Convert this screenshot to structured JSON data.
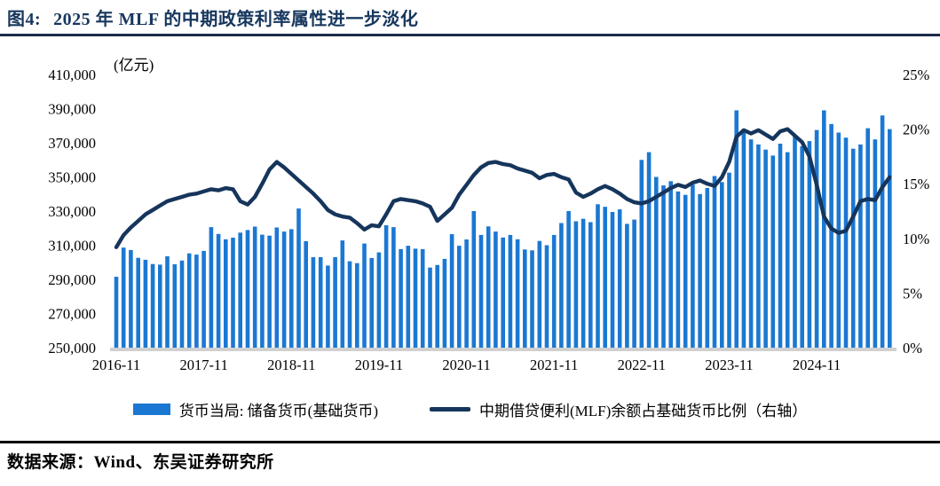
{
  "header": {
    "figure_label": "图4:",
    "title": "2025 年 MLF 的中期政策利率属性进一步淡化"
  },
  "footer": {
    "source": "数据来源：Wind、东吴证券研究所"
  },
  "colors": {
    "bar": "#1B78D2",
    "line": "#16355C",
    "title": "#17375E",
    "baseline": "#D0D0D0",
    "rule_top": "#1B2B4A",
    "rule_bottom": "#000000"
  },
  "chart_data": {
    "type": "bar",
    "subtype": "bar+line combo, dual axis",
    "title": "",
    "unit_label": "(亿元)",
    "legend_position": "bottom",
    "grid": false,
    "x_tick_every": 12,
    "x": [
      "2016-11",
      "2016-12",
      "2017-01",
      "2017-02",
      "2017-03",
      "2017-04",
      "2017-05",
      "2017-06",
      "2017-07",
      "2017-08",
      "2017-09",
      "2017-10",
      "2017-11",
      "2017-12",
      "2018-01",
      "2018-02",
      "2018-03",
      "2018-04",
      "2018-05",
      "2018-06",
      "2018-07",
      "2018-08",
      "2018-09",
      "2018-10",
      "2018-11",
      "2018-12",
      "2019-01",
      "2019-02",
      "2019-03",
      "2019-04",
      "2019-05",
      "2019-06",
      "2019-07",
      "2019-08",
      "2019-09",
      "2019-10",
      "2019-11",
      "2019-12",
      "2020-01",
      "2020-02",
      "2020-03",
      "2020-04",
      "2020-05",
      "2020-06",
      "2020-07",
      "2020-08",
      "2020-09",
      "2020-10",
      "2020-11",
      "2020-12",
      "2021-01",
      "2021-02",
      "2021-03",
      "2021-04",
      "2021-05",
      "2021-06",
      "2021-07",
      "2021-08",
      "2021-09",
      "2021-10",
      "2021-11",
      "2021-12",
      "2022-01",
      "2022-02",
      "2022-03",
      "2022-04",
      "2022-05",
      "2022-06",
      "2022-07",
      "2022-08",
      "2022-09",
      "2022-10",
      "2022-11",
      "2022-12",
      "2023-01",
      "2023-02",
      "2023-03",
      "2023-04",
      "2023-05",
      "2023-06",
      "2023-07",
      "2023-08",
      "2023-09",
      "2023-10",
      "2023-11",
      "2023-12",
      "2024-01",
      "2024-02",
      "2024-03",
      "2024-04",
      "2024-05",
      "2024-06",
      "2024-07",
      "2024-08",
      "2024-09",
      "2024-10",
      "2024-11",
      "2024-12",
      "2025-01",
      "2025-02",
      "2025-03",
      "2025-04",
      "2025-05",
      "2025-06",
      "2025-07",
      "2025-08",
      "2025-09"
    ],
    "left_axis": {
      "min": 250000,
      "max": 410000,
      "step": 20000,
      "tick_labels": [
        "250,000",
        "270,000",
        "290,000",
        "310,000",
        "330,000",
        "350,000",
        "370,000",
        "390,000",
        "410,000"
      ]
    },
    "right_axis": {
      "min": 0,
      "max": 25,
      "step": 5,
      "tick_labels": [
        "0%",
        "5%",
        "10%",
        "15%",
        "20%",
        "25%"
      ]
    },
    "series": [
      {
        "name": "货币当局: 储备货币(基础货币)",
        "type": "bar",
        "axis": "left",
        "color": "#1B78D2",
        "values": [
          291500,
          308600,
          307200,
          302600,
          301500,
          299000,
          298600,
          303500,
          298900,
          301000,
          305200,
          304500,
          306700,
          320600,
          316600,
          313500,
          314400,
          317400,
          318900,
          320900,
          316200,
          315600,
          320400,
          318000,
          319400,
          331500,
          312400,
          303000,
          303000,
          298100,
          303000,
          312800,
          300600,
          299500,
          311000,
          302500,
          305800,
          321700,
          320600,
          307700,
          309700,
          308000,
          307700,
          296900,
          298400,
          302000,
          316500,
          309700,
          313400,
          330000,
          316000,
          321000,
          318000,
          314500,
          316000,
          313500,
          307500,
          307000,
          312500,
          310000,
          316000,
          323000,
          330000,
          324000,
          325500,
          323500,
          334000,
          332500,
          329500,
          331000,
          322500,
          325000,
          360000,
          364500,
          350000,
          345000,
          347500,
          341500,
          339500,
          345500,
          340000,
          343500,
          350500,
          347000,
          352500,
          389000,
          377000,
          372000,
          369000,
          366000,
          362500,
          369500,
          364500,
          374500,
          368000,
          371000,
          377500,
          389000,
          381000,
          376000,
          373000,
          366500,
          369000,
          378500,
          372000,
          386000,
          378000
        ]
      },
      {
        "name": "中期借贷便利(MLF)余额占基础货币比例（右轴）",
        "type": "line",
        "axis": "right",
        "color": "#16355C",
        "values": [
          9.2,
          10.3,
          11.0,
          11.6,
          12.2,
          12.6,
          13.0,
          13.4,
          13.6,
          13.8,
          14.0,
          14.1,
          14.3,
          14.5,
          14.4,
          14.6,
          14.5,
          13.4,
          13.1,
          13.8,
          15.0,
          16.3,
          17.0,
          16.5,
          15.9,
          15.3,
          14.7,
          14.1,
          13.4,
          12.6,
          12.2,
          12.0,
          11.9,
          11.4,
          10.8,
          11.2,
          11.1,
          12.2,
          13.4,
          13.6,
          13.5,
          13.4,
          13.2,
          12.9,
          11.6,
          12.2,
          12.8,
          14.0,
          14.9,
          15.8,
          16.5,
          16.9,
          17.0,
          16.8,
          16.7,
          16.4,
          16.2,
          16.0,
          15.5,
          15.8,
          15.9,
          15.6,
          15.4,
          14.2,
          13.8,
          14.1,
          14.5,
          14.8,
          14.5,
          14.1,
          13.6,
          13.3,
          13.2,
          13.4,
          13.8,
          14.2,
          14.6,
          14.9,
          14.7,
          15.1,
          15.3,
          15.0,
          14.8,
          15.6,
          17.0,
          19.3,
          19.9,
          19.6,
          19.9,
          19.5,
          19.1,
          19.8,
          20.0,
          19.4,
          18.8,
          17.5,
          14.9,
          12.0,
          10.9,
          10.5,
          10.7,
          12.0,
          13.4,
          13.6,
          13.5,
          14.7,
          15.6
        ]
      }
    ]
  }
}
